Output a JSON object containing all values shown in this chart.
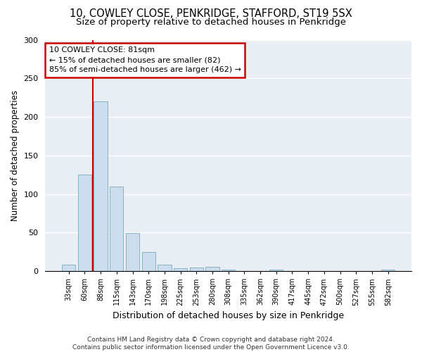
{
  "title_line1": "10, COWLEY CLOSE, PENKRIDGE, STAFFORD, ST19 5SX",
  "title_line2": "Size of property relative to detached houses in Penkridge",
  "xlabel": "Distribution of detached houses by size in Penkridge",
  "ylabel": "Number of detached properties",
  "bar_color": "#ccdded",
  "bar_edge_color": "#7aaabb",
  "categories": [
    "33sqm",
    "60sqm",
    "88sqm",
    "115sqm",
    "143sqm",
    "170sqm",
    "198sqm",
    "225sqm",
    "253sqm",
    "280sqm",
    "308sqm",
    "335sqm",
    "362sqm",
    "390sqm",
    "417sqm",
    "445sqm",
    "472sqm",
    "500sqm",
    "527sqm",
    "555sqm",
    "582sqm"
  ],
  "values": [
    8,
    125,
    220,
    110,
    49,
    25,
    8,
    4,
    5,
    6,
    2,
    0,
    0,
    2,
    0,
    0,
    0,
    0,
    0,
    0,
    2
  ],
  "ylim": [
    0,
    300
  ],
  "yticks": [
    0,
    50,
    100,
    150,
    200,
    250,
    300
  ],
  "annotation_text": "10 COWLEY CLOSE: 81sqm\n← 15% of detached houses are smaller (82)\n85% of semi-detached houses are larger (462) →",
  "annotation_box_color": "#ffffff",
  "annotation_box_edge_color": "#cc0000",
  "property_line_color": "#cc0000",
  "footnote": "Contains HM Land Registry data © Crown copyright and database right 2024.\nContains public sector information licensed under the Open Government Licence v3.0.",
  "fig_bg_color": "#ffffff",
  "axes_bg_color": "#e8eef4",
  "grid_color": "#ffffff",
  "title_fontsize": 10.5,
  "subtitle_fontsize": 9.5,
  "tick_fontsize": 7,
  "ylabel_fontsize": 8.5,
  "xlabel_fontsize": 9,
  "annot_fontsize": 8,
  "footnote_fontsize": 6.5
}
